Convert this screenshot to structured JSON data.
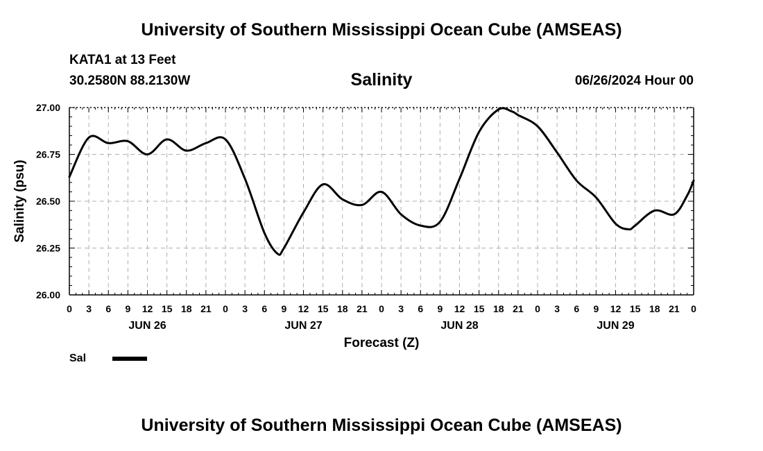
{
  "header": {
    "title": "University of Southern Mississippi Ocean Cube (AMSEAS)",
    "station": "KATA1 at 13 Feet",
    "coords": "30.2580N  88.2130W",
    "subtitle": "Salinity",
    "datetime": "06/26/2024 Hour 00"
  },
  "footer": {
    "title": "University of Southern Mississippi Ocean Cube (AMSEAS)"
  },
  "legend": {
    "label": "Sal"
  },
  "colors": {
    "line": "#000000",
    "grid": "#b0b0b0",
    "background": "#ffffff"
  },
  "chart_data": {
    "type": "line",
    "title": "Salinity",
    "xlabel": "Forecast (Z)",
    "ylabel": "Salinity (psu)",
    "ylim": [
      26.0,
      27.0
    ],
    "yticks": [
      "26.00",
      "26.25",
      "26.50",
      "26.75",
      "27.00"
    ],
    "xlim_hours": [
      0,
      96
    ],
    "xtick_labels": [
      "0",
      "3",
      "6",
      "9",
      "12",
      "15",
      "18",
      "21",
      "0",
      "3",
      "6",
      "9",
      "12",
      "15",
      "18",
      "21",
      "0",
      "3",
      "6",
      "9",
      "12",
      "15",
      "18",
      "21",
      "0",
      "3",
      "6",
      "9",
      "12",
      "15",
      "18",
      "21",
      "0"
    ],
    "day_labels": [
      "JUN 26",
      "JUN 27",
      "JUN 28",
      "JUN 29"
    ],
    "grid": true,
    "legend_placement": "bottom-left",
    "series": [
      {
        "name": "Sal",
        "x": [
          0,
          3,
          6,
          9,
          12,
          15,
          18,
          21,
          24,
          27,
          30,
          32,
          33,
          36,
          39,
          42,
          45,
          48,
          51,
          54,
          57,
          60,
          63,
          66,
          68,
          69,
          72,
          75,
          78,
          81,
          84,
          86,
          87,
          90,
          93,
          95,
          96
        ],
        "values": [
          26.63,
          26.84,
          26.81,
          26.82,
          26.75,
          26.83,
          26.77,
          26.81,
          26.83,
          26.62,
          26.33,
          26.22,
          26.25,
          26.44,
          26.59,
          26.51,
          26.48,
          26.55,
          26.43,
          26.37,
          26.39,
          26.62,
          26.87,
          26.99,
          26.98,
          26.96,
          26.9,
          26.76,
          26.61,
          26.52,
          26.38,
          26.35,
          26.37,
          26.45,
          26.43,
          26.53,
          26.61
        ]
      }
    ]
  }
}
